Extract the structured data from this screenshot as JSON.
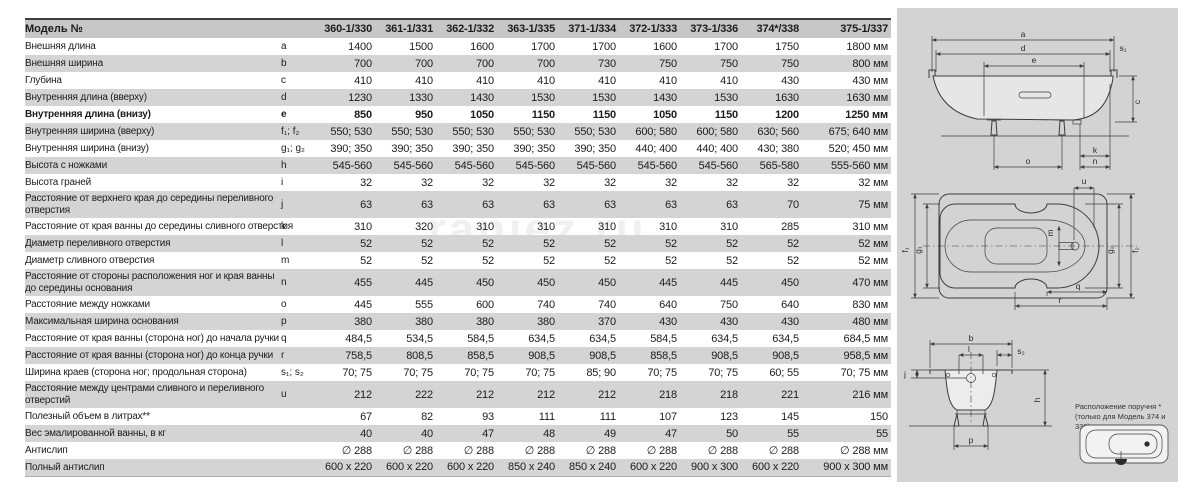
{
  "watermark": "raniez.ru",
  "table": {
    "header": {
      "label": "Модель №",
      "models": [
        "360-1/330",
        "361-1/331",
        "362-1/332",
        "363-1/335",
        "371-1/334",
        "372-1/333",
        "373-1/336",
        "374*/338",
        "375-1/337"
      ]
    },
    "rows": [
      {
        "label": "Внешняя длина",
        "letter": "a",
        "values": [
          "1400",
          "1500",
          "1600",
          "1700",
          "1700",
          "1600",
          "1700",
          "1750",
          "1800 мм"
        ]
      },
      {
        "label": "Внешняя ширина",
        "letter": "b",
        "values": [
          "700",
          "700",
          "700",
          "700",
          "730",
          "750",
          "750",
          "750",
          "800 мм"
        ]
      },
      {
        "label": "Глубина",
        "letter": "c",
        "values": [
          "410",
          "410",
          "410",
          "410",
          "410",
          "410",
          "410",
          "430",
          "430 мм"
        ]
      },
      {
        "label": "Внутренняя длина (вверху)",
        "letter": "d",
        "values": [
          "1230",
          "1330",
          "1430",
          "1530",
          "1530",
          "1430",
          "1530",
          "1630",
          "1630 мм"
        ]
      },
      {
        "label": "Внутренняя длина (внизу)",
        "letter": "e",
        "bold": true,
        "values": [
          "850",
          "950",
          "1050",
          "1150",
          "1150",
          "1050",
          "1150",
          "1200",
          "1250 мм"
        ]
      },
      {
        "label": "Внутренняя ширина (вверху)",
        "letter": "f₁; f₂",
        "values": [
          "550; 530",
          "550; 530",
          "550; 530",
          "550; 530",
          "550; 530",
          "600; 580",
          "600; 580",
          "630; 560",
          "675; 640 мм"
        ]
      },
      {
        "label": "Внутренняя ширина (внизу)",
        "letter": "g₁; g₂",
        "values": [
          "390; 350",
          "390; 350",
          "390; 350",
          "390; 350",
          "390; 350",
          "440; 400",
          "440; 400",
          "430; 380",
          "520; 450 мм"
        ]
      },
      {
        "label": "Высота с ножками",
        "letter": "h",
        "values": [
          "545-560",
          "545-560",
          "545-560",
          "545-560",
          "545-560",
          "545-560",
          "545-560",
          "565-580",
          "555-560 мм"
        ]
      },
      {
        "label": "Высота граней",
        "letter": "i",
        "values": [
          "32",
          "32",
          "32",
          "32",
          "32",
          "32",
          "32",
          "32",
          "32 мм"
        ]
      },
      {
        "label": "Расстояние от верхнего края до середины переливного отверстия",
        "letter": "j",
        "twoline": true,
        "values": [
          "63",
          "63",
          "63",
          "63",
          "63",
          "63",
          "63",
          "70",
          "75 мм"
        ]
      },
      {
        "label": "Расстояние от края ванны до середины сливного отверстия",
        "letter": "k",
        "values": [
          "310",
          "320",
          "310",
          "310",
          "310",
          "310",
          "310",
          "285",
          "310 мм"
        ]
      },
      {
        "label": "Диаметр переливного отверстия",
        "letter": "l",
        "values": [
          "52",
          "52",
          "52",
          "52",
          "52",
          "52",
          "52",
          "52",
          "52 мм"
        ]
      },
      {
        "label": "Диаметр сливного отверстия",
        "letter": "m",
        "values": [
          "52",
          "52",
          "52",
          "52",
          "52",
          "52",
          "52",
          "52",
          "52 мм"
        ]
      },
      {
        "label": "Расстояние от стороны расположения ног и края ванны до середины основания",
        "letter": "n",
        "twoline": true,
        "values": [
          "455",
          "445",
          "450",
          "450",
          "450",
          "445",
          "445",
          "450",
          "470 мм"
        ]
      },
      {
        "label": "Расстояние между ножками",
        "letter": "o",
        "values": [
          "445",
          "555",
          "600",
          "740",
          "740",
          "640",
          "750",
          "640",
          "830 мм"
        ]
      },
      {
        "label": "Максимальная ширина основания",
        "letter": "p",
        "values": [
          "380",
          "380",
          "380",
          "380",
          "370",
          "430",
          "430",
          "430",
          "480 мм"
        ]
      },
      {
        "label": "Расстояние от края ванны (сторона ног) до начала ручки",
        "letter": "q",
        "values": [
          "484,5",
          "534,5",
          "584,5",
          "634,5",
          "634,5",
          "584,5",
          "634,5",
          "634,5",
          "684,5 мм"
        ]
      },
      {
        "label": "Расстояние от края ванны (сторона ног) до конца ручки",
        "letter": "r",
        "values": [
          "758,5",
          "808,5",
          "858,5",
          "908,5",
          "908,5",
          "858,5",
          "908,5",
          "908,5",
          "958,5 мм"
        ]
      },
      {
        "label": "Ширина краев (сторона ног; продольная сторона)",
        "letter": "s₁; s₂",
        "values": [
          "70; 75",
          "70; 75",
          "70; 75",
          "70; 75",
          "85; 90",
          "70; 75",
          "70; 75",
          "60; 55",
          "70; 75 мм"
        ]
      },
      {
        "label": "Расстояние между центрами сливного и переливного отверстий",
        "letter": "u",
        "twoline": true,
        "values": [
          "212",
          "222",
          "212",
          "212",
          "212",
          "218",
          "218",
          "221",
          "216 мм"
        ]
      },
      {
        "label": "Полезный объем в литрах**",
        "letter": "",
        "values": [
          "67",
          "82",
          "93",
          "111",
          "111",
          "107",
          "123",
          "145",
          "150"
        ]
      },
      {
        "label": "Вес эмалированной ванны, в кг",
        "letter": "",
        "values": [
          "40",
          "40",
          "47",
          "48",
          "49",
          "47",
          "50",
          "55",
          "55"
        ]
      },
      {
        "label": "Антислип",
        "letter": "",
        "values": [
          "∅ 288",
          "∅ 288",
          "∅ 288",
          "∅ 288",
          "∅ 288",
          "∅ 288",
          "∅ 288",
          "∅ 288",
          "∅ 288 мм"
        ]
      },
      {
        "label": "Полный антислип",
        "letter": "",
        "values": [
          "600 x 220",
          "600 x 220",
          "600 x 220",
          "850 x 240",
          "850 x 240",
          "600 x 220",
          "900 x 300",
          "600 x 220",
          "900 x 300 мм"
        ]
      }
    ]
  },
  "diagrams": {
    "labels": {
      "a": "a",
      "b": "b",
      "c": "c",
      "d": "d",
      "e": "e",
      "h": "h",
      "j": "j",
      "k": "k",
      "l": "l",
      "m": "m",
      "n": "n",
      "o": "o",
      "p": "p",
      "q": "q",
      "r": "r",
      "u": "u",
      "s1": "s₁",
      "s2": "s₂",
      "f1": "f₁",
      "f2": "f₂",
      "g1": "g₁",
      "g2": "g₂"
    },
    "handle_note_line1": "Расположение поручня *",
    "handle_note_line2": "(только для Модель 374 и 338)"
  },
  "colors": {
    "panel_bg": "#d3d3d3",
    "row_alt": "#d4d4d4",
    "header_bg": "#c7c7c7",
    "line": "#3c3c3c"
  }
}
